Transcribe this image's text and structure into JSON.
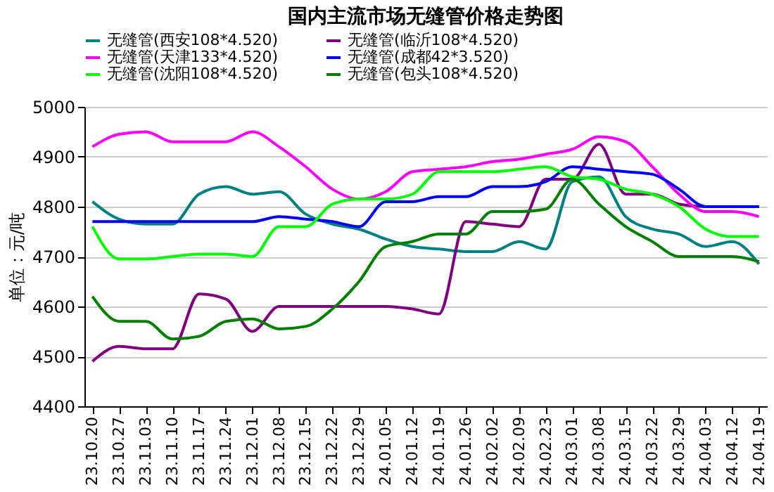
{
  "chart_data": {
    "type": "line",
    "title": "国内主流市场无缝管价格走势图",
    "ylabel": "单位：元/吨",
    "categories": [
      "23.10.20",
      "23.10.27",
      "23.11.03",
      "23.11.10",
      "23.11.17",
      "23.11.24",
      "23.12.01",
      "23.12.08",
      "23.12.15",
      "23.12.22",
      "23.12.29",
      "24.01.05",
      "24.01.12",
      "24.01.19",
      "24.01.26",
      "24.02.02",
      "24.02.09",
      "24.02.23",
      "24.03.01",
      "24.03.08",
      "24.03.15",
      "24.03.22",
      "24.03.29",
      "24.04.03",
      "24.04.12",
      "24.04.19"
    ],
    "series": [
      {
        "name": "无缝管(西安108*4.520)",
        "color": "#008080",
        "values": [
          4810,
          4775,
          4765,
          4765,
          4825,
          4840,
          4825,
          4830,
          4785,
          4765,
          4755,
          4735,
          4720,
          4715,
          4710,
          4710,
          4730,
          4715,
          4850,
          4860,
          4780,
          4755,
          4745,
          4720,
          4730,
          4685
        ]
      },
      {
        "name": "无缝管(临沂108*4.520)",
        "color": "#800080",
        "values": [
          4490,
          4520,
          4515,
          4515,
          4625,
          4615,
          4550,
          4600,
          4600,
          4600,
          4600,
          4600,
          4595,
          4585,
          4770,
          4765,
          4760,
          4855,
          4855,
          4925,
          4825,
          4825,
          4805,
          4800,
          4800,
          4800
        ]
      },
      {
        "name": "无缝管(天津133*4.520)",
        "color": "#ff00ff",
        "values": [
          4920,
          4945,
          4950,
          4930,
          4930,
          4930,
          4950,
          4920,
          4880,
          4835,
          4815,
          4830,
          4870,
          4875,
          4880,
          4890,
          4895,
          4905,
          4915,
          4940,
          4930,
          4880,
          4825,
          4790,
          4790,
          4780
        ]
      },
      {
        "name": "无缝管(成都42*3.520)",
        "color": "#0000ff",
        "values": [
          4770,
          4770,
          4770,
          4770,
          4770,
          4770,
          4770,
          4780,
          4775,
          4770,
          4760,
          4810,
          4810,
          4820,
          4820,
          4840,
          4840,
          4850,
          4880,
          4875,
          4870,
          4865,
          4835,
          4800,
          4800,
          4800
        ]
      },
      {
        "name": "无缝管(沈阳108*4.520)",
        "color": "#00ff00",
        "values": [
          4760,
          4695,
          4695,
          4700,
          4705,
          4705,
          4700,
          4760,
          4760,
          4805,
          4815,
          4815,
          4825,
          4870,
          4870,
          4870,
          4875,
          4880,
          4860,
          4855,
          4835,
          4825,
          4800,
          4755,
          4740,
          4740
        ]
      },
      {
        "name": "无缝管(包头108*4.520)",
        "color": "#008000",
        "values": [
          4620,
          4570,
          4570,
          4535,
          4540,
          4570,
          4575,
          4555,
          4560,
          4595,
          4650,
          4720,
          4730,
          4745,
          4745,
          4790,
          4790,
          4795,
          4855,
          4805,
          4760,
          4730,
          4700,
          4700,
          4700,
          4690
        ]
      }
    ],
    "ylim": [
      4400,
      5000
    ],
    "yticks": [
      4400,
      4500,
      4600,
      4700,
      4800,
      4900,
      5000
    ],
    "grid": "y",
    "legend": "top",
    "marker": "none",
    "line_style": "solid"
  }
}
